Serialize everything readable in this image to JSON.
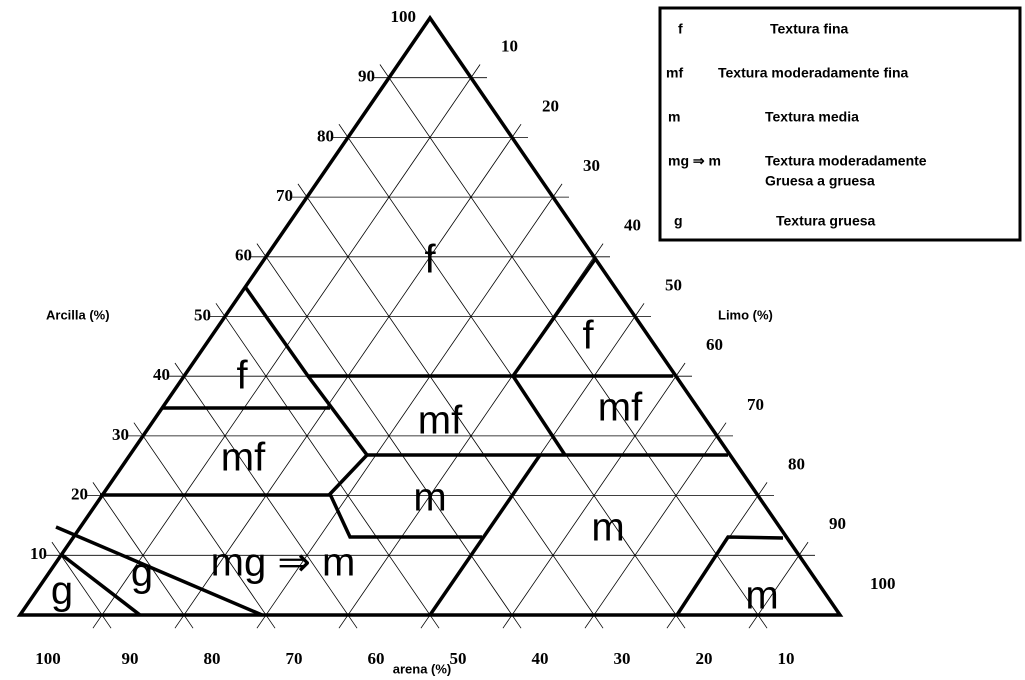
{
  "axes": {
    "clay": {
      "title": "Arcilla (%)",
      "ticks": [
        100,
        90,
        80,
        70,
        60,
        50,
        40,
        30,
        20,
        10
      ]
    },
    "silt": {
      "title": "Limo (%)",
      "ticks": [
        10,
        20,
        30,
        40,
        50,
        60,
        70,
        80,
        90,
        100
      ]
    },
    "sand": {
      "title": "arena (%)",
      "ticks": [
        100,
        90,
        80,
        70,
        60,
        50,
        40,
        30,
        20,
        10
      ]
    }
  },
  "regions": [
    {
      "label": "f"
    },
    {
      "label": "f"
    },
    {
      "label": "f"
    },
    {
      "label": "mf"
    },
    {
      "label": "mf"
    },
    {
      "label": "mf"
    },
    {
      "label": "m"
    },
    {
      "label": "m"
    },
    {
      "label": "mg ⇒ m"
    },
    {
      "label": "g"
    },
    {
      "label": "g"
    },
    {
      "label": "m"
    }
  ],
  "legend": [
    {
      "code": "f",
      "description": "Textura fina"
    },
    {
      "code": "mf",
      "description": "Textura moderadamente fina"
    },
    {
      "code": "m",
      "description": "Textura media"
    },
    {
      "code": "mg ⇒ m",
      "description": [
        "Textura moderadamente",
        "Gruesa a gruesa"
      ]
    },
    {
      "code": "g",
      "description": "Textura gruesa"
    }
  ]
}
